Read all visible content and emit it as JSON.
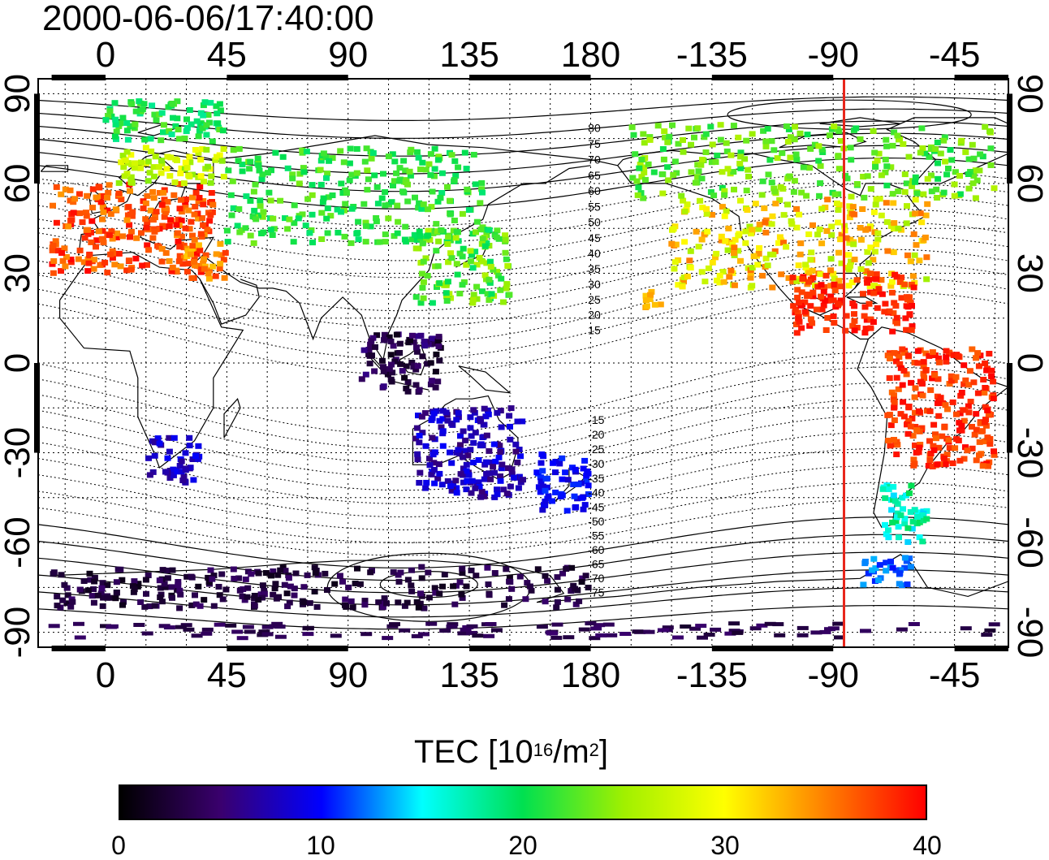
{
  "header": {
    "timestamp": "2000-06-06/17:40:00"
  },
  "map": {
    "projection": "equirectangular",
    "lon_range": [
      -25,
      335
    ],
    "lat_range": [
      -95,
      95
    ],
    "top_axis_ticks": [
      {
        "lon": 0,
        "label": "0"
      },
      {
        "lon": 45,
        "label": "45"
      },
      {
        "lon": 90,
        "label": "90"
      },
      {
        "lon": 135,
        "label": "135"
      },
      {
        "lon": 180,
        "label": "180"
      },
      {
        "lon": 225,
        "label": "-135"
      },
      {
        "lon": 270,
        "label": "-90"
      },
      {
        "lon": 315,
        "label": "-45"
      }
    ],
    "bottom_axis_ticks": [
      {
        "lon": 0,
        "label": "0"
      },
      {
        "lon": 45,
        "label": "45"
      },
      {
        "lon": 90,
        "label": "90"
      },
      {
        "lon": 135,
        "label": "135"
      },
      {
        "lon": 180,
        "label": "180"
      },
      {
        "lon": 225,
        "label": "-135"
      },
      {
        "lon": 270,
        "label": "-90"
      },
      {
        "lon": 315,
        "label": "-45"
      }
    ],
    "lat_ticks": [
      {
        "lat": 90,
        "label": "90"
      },
      {
        "lat": 60,
        "label": "60"
      },
      {
        "lat": 30,
        "label": "30"
      },
      {
        "lat": 0,
        "label": "0"
      },
      {
        "lat": -30,
        "label": "-30"
      },
      {
        "lat": -60,
        "label": "-60"
      },
      {
        "lat": -90,
        "label": "-90"
      }
    ],
    "meridian_marker": {
      "lon": 274,
      "color": "#e8251b"
    },
    "magnetic_latitude_labels": [
      "80",
      "75",
      "70",
      "65",
      "60",
      "55",
      "50",
      "45",
      "40",
      "35",
      "30",
      "25",
      "20",
      "15",
      "-15",
      "-20",
      "-25",
      "-30",
      "-35",
      "-40",
      "-45",
      "-50",
      "-55",
      "-60",
      "-65",
      "-70",
      "-75"
    ],
    "tec_clusters": [
      {
        "region": "western-europe",
        "lon": [
          -20,
          40
        ],
        "lat": [
          30,
          60
        ],
        "tec": [
          34,
          40
        ]
      },
      {
        "region": "north-europe",
        "lon": [
          5,
          45
        ],
        "lat": [
          60,
          72
        ],
        "tec": [
          24,
          30
        ]
      },
      {
        "region": "arctic-europe",
        "lon": [
          0,
          45
        ],
        "lat": [
          74,
          88
        ],
        "tec": [
          18,
          23
        ]
      },
      {
        "region": "mediterranean",
        "lon": [
          30,
          45
        ],
        "lat": [
          28,
          40
        ],
        "tec": [
          32,
          38
        ]
      },
      {
        "region": "russia",
        "lon": [
          45,
          140
        ],
        "lat": [
          40,
          72
        ],
        "tec": [
          19,
          24
        ]
      },
      {
        "region": "japan-china",
        "lon": [
          115,
          150
        ],
        "lat": [
          20,
          45
        ],
        "tec": [
          19,
          26
        ]
      },
      {
        "region": "se-asia",
        "lon": [
          95,
          125
        ],
        "lat": [
          -10,
          10
        ],
        "tec": [
          1,
          6
        ]
      },
      {
        "region": "australia",
        "lon": [
          115,
          155
        ],
        "lat": [
          -45,
          -15
        ],
        "tec": [
          5,
          10
        ]
      },
      {
        "region": "new-zealand",
        "lon": [
          160,
          180
        ],
        "lat": [
          -50,
          -30
        ],
        "tec": [
          8,
          11
        ]
      },
      {
        "region": "south-africa",
        "lon": [
          15,
          35
        ],
        "lat": [
          -40,
          -25
        ],
        "tec": [
          6,
          10
        ]
      },
      {
        "region": "north-america",
        "lon": [
          210,
          305
        ],
        "lat": [
          25,
          55
        ],
        "tec": [
          25,
          36
        ]
      },
      {
        "region": "canada",
        "lon": [
          195,
          330
        ],
        "lat": [
          55,
          80
        ],
        "tec": [
          20,
          26
        ]
      },
      {
        "region": "gulf-caribbean",
        "lon": [
          255,
          300
        ],
        "lat": [
          10,
          30
        ],
        "tec": [
          37,
          40
        ]
      },
      {
        "region": "hawaii",
        "lon": [
          200,
          207
        ],
        "lat": [
          18,
          24
        ],
        "tec": [
          32,
          34
        ]
      },
      {
        "region": "south-america",
        "lon": [
          290,
          330
        ],
        "lat": [
          -35,
          5
        ],
        "tec": [
          36,
          40
        ]
      },
      {
        "region": "patagonia",
        "lon": [
          288,
          305
        ],
        "lat": [
          -60,
          -40
        ],
        "tec": [
          14,
          20
        ]
      },
      {
        "region": "drake-passage",
        "lon": [
          280,
          300
        ],
        "lat": [
          -75,
          -65
        ],
        "tec": [
          10,
          14
        ]
      },
      {
        "region": "antarctic-band",
        "lon": [
          -20,
          180
        ],
        "lat": [
          -82,
          -68
        ],
        "tec": [
          1,
          5
        ]
      },
      {
        "region": "south-pole-band",
        "lon": [
          -20,
          335
        ],
        "lat": [
          -92,
          -87
        ],
        "tec": [
          2,
          5
        ]
      }
    ]
  },
  "colorbar": {
    "title_prefix": "TEC  [10",
    "title_exp1": "16",
    "title_mid": "/m",
    "title_exp2": "2",
    "title_suffix": "]",
    "range": [
      0,
      40
    ],
    "ticks": [
      {
        "value": 0,
        "label": "0"
      },
      {
        "value": 10,
        "label": "10"
      },
      {
        "value": 20,
        "label": "20"
      },
      {
        "value": 30,
        "label": "30"
      },
      {
        "value": 40,
        "label": "40"
      }
    ],
    "stops": [
      {
        "value": 0,
        "color": "#000000"
      },
      {
        "value": 5,
        "color": "#3a006e"
      },
      {
        "value": 10,
        "color": "#0000ff"
      },
      {
        "value": 15,
        "color": "#00ffff"
      },
      {
        "value": 20,
        "color": "#00e050"
      },
      {
        "value": 25,
        "color": "#a0f000"
      },
      {
        "value": 30,
        "color": "#ffff00"
      },
      {
        "value": 35,
        "color": "#ff8000"
      },
      {
        "value": 40,
        "color": "#ff0000"
      }
    ]
  }
}
